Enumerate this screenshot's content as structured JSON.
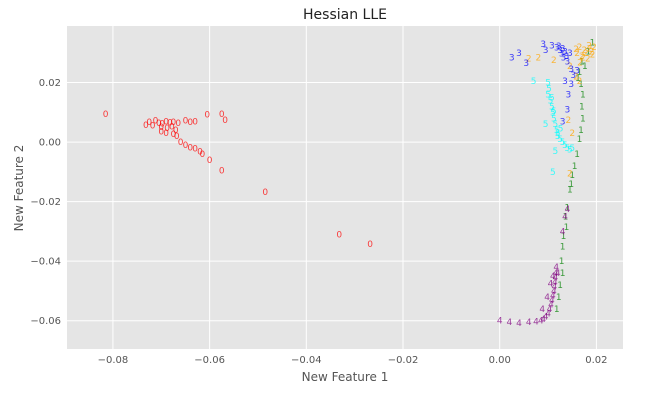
{
  "chart_data": {
    "type": "scatter",
    "title": "Hessian LLE",
    "xlabel": "New Feature 1",
    "ylabel": "New Feature 2",
    "xlim": [
      -0.0895,
      0.0255
    ],
    "ylim": [
      -0.0695,
      0.039
    ],
    "x_ticks": [
      -0.08,
      -0.06,
      -0.04,
      -0.02,
      0.0,
      0.02
    ],
    "x_tick_labels": [
      "−0.08",
      "−0.06",
      "−0.04",
      "−0.02",
      "0.00",
      "0.02"
    ],
    "y_ticks": [
      -0.06,
      -0.04,
      -0.02,
      0.0,
      0.02
    ],
    "y_tick_labels": [
      "−0.06",
      "−0.04",
      "−0.02",
      "0.00",
      "0.02"
    ],
    "grid": true,
    "background": "#e5e5e5",
    "marker": "digit glyph",
    "series": [
      {
        "label": "0",
        "color": "#ff0000",
        "points": [
          [
            -0.0815,
            0.0095
          ],
          [
            -0.0575,
            0.0095
          ],
          [
            -0.0605,
            0.0092
          ],
          [
            -0.0568,
            0.0075
          ],
          [
            -0.0725,
            0.0068
          ],
          [
            -0.0732,
            0.0058
          ],
          [
            -0.0712,
            0.0072
          ],
          [
            -0.0705,
            0.0065
          ],
          [
            -0.0698,
            0.0062
          ],
          [
            -0.0718,
            0.0055
          ],
          [
            -0.069,
            0.007
          ],
          [
            -0.0682,
            0.0066
          ],
          [
            -0.0675,
            0.0068
          ],
          [
            -0.0665,
            0.0064
          ],
          [
            -0.065,
            0.0072
          ],
          [
            -0.064,
            0.0068
          ],
          [
            -0.063,
            0.007
          ],
          [
            -0.07,
            0.005
          ],
          [
            -0.0688,
            0.0048
          ],
          [
            -0.0678,
            0.0052
          ],
          [
            -0.067,
            0.004
          ],
          [
            -0.07,
            0.0035
          ],
          [
            -0.069,
            0.003
          ],
          [
            -0.0675,
            0.0028
          ],
          [
            -0.0668,
            0.002
          ],
          [
            -0.066,
            0.0
          ],
          [
            -0.065,
            -0.001
          ],
          [
            -0.064,
            -0.0018
          ],
          [
            -0.063,
            -0.0022
          ],
          [
            -0.062,
            -0.0032
          ],
          [
            -0.0615,
            -0.004
          ],
          [
            -0.06,
            -0.006
          ],
          [
            -0.0575,
            -0.0095
          ],
          [
            -0.0485,
            -0.0168
          ],
          [
            -0.0332,
            -0.031
          ],
          [
            -0.0268,
            -0.0342
          ]
        ]
      },
      {
        "label": "1",
        "color": "#008000",
        "points": [
          [
            0.0192,
            0.0335
          ],
          [
            0.0183,
            0.0305
          ],
          [
            0.017,
            0.027
          ],
          [
            0.0176,
            0.0255
          ],
          [
            0.0165,
            0.0235
          ],
          [
            0.0162,
            0.0215
          ],
          [
            0.0168,
            0.0195
          ],
          [
            0.0172,
            0.016
          ],
          [
            0.017,
            0.012
          ],
          [
            0.0172,
            0.008
          ],
          [
            0.0168,
            0.004
          ],
          [
            0.0165,
            0.001
          ],
          [
            0.016,
            -0.004
          ],
          [
            0.0155,
            -0.008
          ],
          [
            0.015,
            -0.011
          ],
          [
            0.0148,
            -0.014
          ],
          [
            0.0145,
            -0.016
          ],
          [
            0.014,
            -0.022
          ],
          [
            0.0136,
            -0.025
          ],
          [
            0.0138,
            -0.0285
          ],
          [
            0.0132,
            -0.0315
          ],
          [
            0.013,
            -0.035
          ],
          [
            0.0128,
            -0.04
          ],
          [
            0.013,
            -0.044
          ],
          [
            0.0125,
            -0.048
          ],
          [
            0.0122,
            -0.052
          ],
          [
            0.0118,
            -0.056
          ]
        ]
      },
      {
        "label": "2",
        "color": "#ffa500",
        "points": [
          [
            0.0185,
            0.0325
          ],
          [
            0.019,
            0.0305
          ],
          [
            0.0178,
            0.03
          ],
          [
            0.017,
            0.029
          ],
          [
            0.0165,
            0.032
          ],
          [
            0.0175,
            0.031
          ],
          [
            0.0182,
            0.028
          ],
          [
            0.016,
            0.03
          ],
          [
            0.0192,
            0.0295
          ],
          [
            0.0172,
            0.0285
          ],
          [
            0.0186,
            0.0315
          ],
          [
            0.0158,
            0.0312
          ],
          [
            0.0166,
            0.0268
          ],
          [
            0.0195,
            0.032
          ],
          [
            0.0112,
            0.0275
          ],
          [
            0.008,
            0.0285
          ],
          [
            0.006,
            0.028
          ],
          [
            0.0145,
            0.0255
          ],
          [
            0.0158,
            0.022
          ],
          [
            0.0165,
            0.0205
          ],
          [
            0.0142,
            0.0075
          ],
          [
            0.015,
            0.003
          ],
          [
            0.0145,
            -0.0105
          ]
        ]
      },
      {
        "label": "3",
        "color": "#0000ff",
        "points": [
          [
            0.013,
            0.0315
          ],
          [
            0.0135,
            0.0305
          ],
          [
            0.0128,
            0.0298
          ],
          [
            0.0138,
            0.029
          ],
          [
            0.0125,
            0.031
          ],
          [
            0.0132,
            0.0285
          ],
          [
            0.014,
            0.027
          ],
          [
            0.0122,
            0.0322
          ],
          [
            0.0118,
            0.0318
          ],
          [
            0.0145,
            0.03
          ],
          [
            0.0108,
            0.0325
          ],
          [
            0.0095,
            0.031
          ],
          [
            0.009,
            0.033
          ],
          [
            0.004,
            0.03
          ],
          [
            0.0025,
            0.0285
          ],
          [
            0.0055,
            0.0265
          ],
          [
            0.0148,
            0.0245
          ],
          [
            0.0152,
            0.0225
          ],
          [
            0.0135,
            0.0205
          ],
          [
            0.0148,
            0.0195
          ],
          [
            0.016,
            0.024
          ],
          [
            0.0142,
            0.016
          ],
          [
            0.014,
            0.011
          ],
          [
            0.013,
            0.007
          ]
        ]
      },
      {
        "label": "4",
        "color": "#800080",
        "points": [
          [
            0.0,
            -0.06
          ],
          [
            0.002,
            -0.0605
          ],
          [
            0.004,
            -0.0608
          ],
          [
            0.006,
            -0.0605
          ],
          [
            0.0075,
            -0.0602
          ],
          [
            0.0085,
            -0.06
          ],
          [
            0.009,
            -0.0595
          ],
          [
            0.0095,
            -0.0585
          ],
          [
            0.01,
            -0.0575
          ],
          [
            0.0103,
            -0.056
          ],
          [
            0.0106,
            -0.0545
          ],
          [
            0.0108,
            -0.053
          ],
          [
            0.011,
            -0.0515
          ],
          [
            0.0112,
            -0.05
          ],
          [
            0.0113,
            -0.0485
          ],
          [
            0.0114,
            -0.047
          ],
          [
            0.0115,
            -0.0455
          ],
          [
            0.0116,
            -0.044
          ],
          [
            0.0117,
            -0.042
          ],
          [
            0.011,
            -0.045
          ],
          [
            0.0105,
            -0.0475
          ],
          [
            0.0098,
            -0.052
          ],
          [
            0.0088,
            -0.056
          ],
          [
            0.012,
            -0.044
          ],
          [
            0.013,
            -0.03
          ],
          [
            0.0135,
            -0.025
          ],
          [
            0.014,
            -0.0225
          ]
        ]
      },
      {
        "label": "5",
        "color": "#00ffff",
        "points": [
          [
            0.007,
            0.0205
          ],
          [
            0.01,
            0.02
          ],
          [
            0.0102,
            0.018
          ],
          [
            0.01,
            0.016
          ],
          [
            0.0105,
            0.014
          ],
          [
            0.0108,
            0.012
          ],
          [
            0.0095,
            0.006
          ],
          [
            0.011,
            0.01
          ],
          [
            0.0112,
            0.008
          ],
          [
            0.0115,
            0.006
          ],
          [
            0.0118,
            0.004
          ],
          [
            0.012,
            0.003
          ],
          [
            0.0125,
            0.001
          ],
          [
            0.013,
            0.0
          ],
          [
            0.0135,
            -0.001
          ],
          [
            0.014,
            -0.002
          ],
          [
            0.0145,
            -0.0025
          ],
          [
            0.015,
            -0.002
          ],
          [
            0.0115,
            -0.003
          ],
          [
            0.011,
            -0.01
          ],
          [
            0.012,
            0.002
          ],
          [
            0.0108,
            0.015
          ],
          [
            0.0112,
            0.0105
          ],
          [
            0.0126,
            0.0045
          ]
        ]
      }
    ]
  }
}
